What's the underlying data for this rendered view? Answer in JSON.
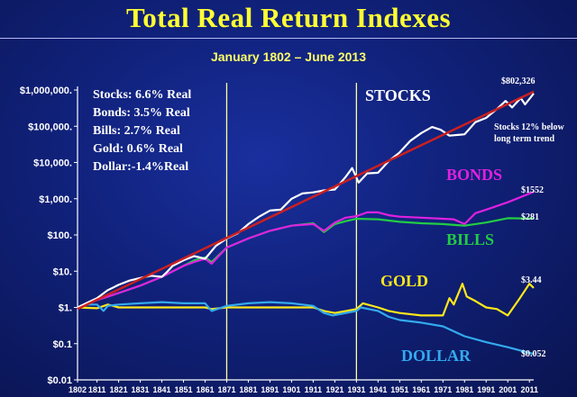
{
  "title": "Total Real Return Indexes",
  "subtitle": "January 1802 – June 2013",
  "chart_data": {
    "type": "line",
    "y_scale": "log",
    "ylim": [
      0.01,
      1000000
    ],
    "xlim": [
      1802,
      2013
    ],
    "y_tick_values": [
      0.01,
      0.1,
      1,
      10,
      100,
      1000,
      10000,
      100000,
      1000000
    ],
    "y_tick_labels": [
      "$0.01",
      "$0.1",
      "$1.",
      "$10.",
      "$100.",
      "$1,000.",
      "$10,000.",
      "$100,000.",
      "$1,000,000."
    ],
    "x_tick_labels": [
      "1802",
      "1811",
      "1821",
      "1831",
      "1841",
      "1851",
      "1861",
      "1871",
      "1881",
      "1891",
      "1901",
      "1911",
      "1921",
      "1931",
      "1941",
      "1951",
      "1961",
      "1971",
      "1981",
      "1991",
      "2001",
      "2011"
    ],
    "vertical_markers": [
      1871,
      1931
    ],
    "legend_lines": [
      "Stocks: 6.6% Real",
      "Bonds: 3.5% Real",
      "Bills:    2.7% Real",
      "Gold:  0.6% Real",
      "Dollar:-1.4%Real"
    ],
    "annotation": [
      "Stocks 12% below",
      "long term trend"
    ],
    "series": [
      {
        "name": "STOCKS",
        "color": "#ffffff",
        "end_label": "$802,326",
        "x": [
          1802,
          1806,
          1811,
          1816,
          1821,
          1826,
          1831,
          1836,
          1841,
          1843,
          1846,
          1851,
          1856,
          1861,
          1866,
          1871,
          1876,
          1881,
          1886,
          1891,
          1896,
          1901,
          1906,
          1911,
          1916,
          1921,
          1926,
          1929,
          1932,
          1936,
          1941,
          1946,
          1951,
          1956,
          1961,
          1966,
          1970,
          1974,
          1981,
          1986,
          1991,
          1996,
          2000,
          2003,
          2007,
          2009,
          2013
        ],
        "values": [
          1,
          1.3,
          1.8,
          3,
          4.2,
          5.5,
          6.5,
          7.5,
          7,
          9,
          14,
          20,
          26,
          22,
          50,
          80,
          110,
          200,
          320,
          470,
          500,
          1000,
          1400,
          1500,
          1700,
          1800,
          4000,
          7000,
          2800,
          5000,
          5200,
          11000,
          19000,
          40000,
          65000,
          95000,
          80000,
          55000,
          60000,
          130000,
          170000,
          300000,
          500000,
          330000,
          600000,
          400000,
          802326
        ]
      },
      {
        "name": "Trend",
        "color": "#cc2020",
        "x": [
          1802,
          2013
        ],
        "values": [
          0.9,
          900000
        ]
      },
      {
        "name": "BONDS",
        "color": "#e020e0",
        "end_label": "$1552",
        "x": [
          1802,
          1811,
          1821,
          1831,
          1841,
          1851,
          1856,
          1861,
          1864,
          1871,
          1881,
          1891,
          1901,
          1911,
          1916,
          1921,
          1926,
          1931,
          1936,
          1941,
          1946,
          1951,
          1961,
          1971,
          1976,
          1981,
          1986,
          1991,
          2001,
          2013
        ],
        "values": [
          1,
          1.6,
          2.5,
          4,
          7,
          14,
          18,
          22,
          16,
          45,
          80,
          130,
          180,
          200,
          130,
          220,
          300,
          330,
          420,
          420,
          350,
          320,
          300,
          280,
          270,
          200,
          400,
          500,
          800,
          1552
        ]
      },
      {
        "name": "BILLS",
        "color": "#22cc44",
        "end_label": "$281",
        "x": [
          1802,
          1811,
          1821,
          1831,
          1841,
          1851,
          1856,
          1861,
          1864,
          1871,
          1881,
          1891,
          1901,
          1911,
          1916,
          1921,
          1926,
          1931,
          1941,
          1951,
          1961,
          1971,
          1981,
          1991,
          2001,
          2013
        ],
        "values": [
          1,
          1.6,
          2.5,
          4,
          7,
          14,
          20,
          24,
          18,
          45,
          80,
          130,
          180,
          210,
          120,
          200,
          240,
          280,
          270,
          230,
          210,
          200,
          180,
          220,
          290,
          281
        ]
      },
      {
        "name": "GOLD",
        "color": "#ffe81a",
        "end_label": "$3.44",
        "x": [
          1802,
          1811,
          1816,
          1821,
          1831,
          1841,
          1851,
          1861,
          1864,
          1871,
          1881,
          1891,
          1901,
          1911,
          1916,
          1921,
          1931,
          1934,
          1941,
          1946,
          1951,
          1961,
          1971,
          1974,
          1976,
          1980,
          1982,
          1986,
          1991,
          1996,
          2001,
          2006,
          2011,
          2013
        ],
        "values": [
          1,
          0.95,
          1.2,
          1,
          1,
          1,
          1,
          1,
          0.9,
          1,
          1,
          1,
          1,
          1,
          0.8,
          0.7,
          0.9,
          1.3,
          1,
          0.8,
          0.7,
          0.6,
          0.6,
          1.8,
          1.2,
          4.5,
          2,
          1.5,
          1.0,
          0.9,
          0.6,
          1.6,
          4.5,
          3.44
        ]
      },
      {
        "name": "DOLLAR",
        "color": "#33aaee",
        "end_label": "$0.052",
        "x": [
          1802,
          1806,
          1811,
          1814,
          1816,
          1821,
          1831,
          1841,
          1851,
          1861,
          1864,
          1871,
          1881,
          1891,
          1901,
          1911,
          1916,
          1920,
          1926,
          1931,
          1933,
          1941,
          1946,
          1951,
          1961,
          1971,
          1981,
          1991,
          2001,
          2013
        ],
        "values": [
          1,
          1.2,
          1.2,
          0.8,
          1.1,
          1.2,
          1.3,
          1.4,
          1.3,
          1.3,
          0.8,
          1.1,
          1.3,
          1.4,
          1.3,
          1.1,
          0.7,
          0.6,
          0.7,
          0.8,
          1.0,
          0.8,
          0.55,
          0.45,
          0.38,
          0.3,
          0.16,
          0.11,
          0.08,
          0.052
        ]
      }
    ]
  }
}
